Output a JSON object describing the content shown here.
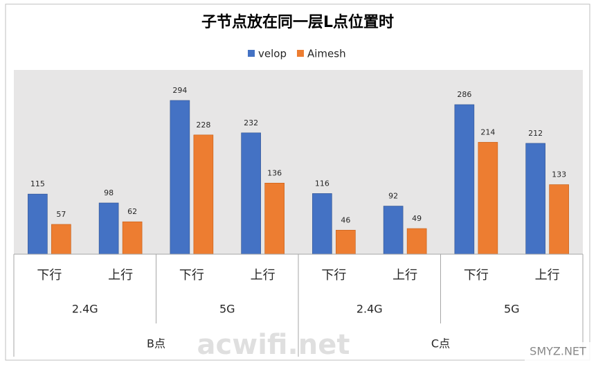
{
  "chart_data": {
    "type": "bar",
    "title": "子节点放在同一层L点位置时",
    "categories": [
      "下行",
      "上行",
      "下行",
      "上行",
      "下行",
      "上行",
      "下行",
      "上行"
    ],
    "category_groups": [
      "2.4G",
      "5G",
      "2.4G",
      "5G"
    ],
    "category_supergroups": [
      "B点",
      "C点"
    ],
    "series": [
      {
        "name": "velop",
        "color": "#4472c4",
        "values": [
          115,
          98,
          294,
          232,
          116,
          92,
          286,
          212
        ]
      },
      {
        "name": "Aimesh",
        "color": "#ed7d31",
        "values": [
          57,
          62,
          228,
          136,
          46,
          49,
          214,
          133
        ]
      }
    ],
    "legend": "top",
    "watermarks": [
      "acwifi.net",
      "SMYZ.NET"
    ]
  }
}
